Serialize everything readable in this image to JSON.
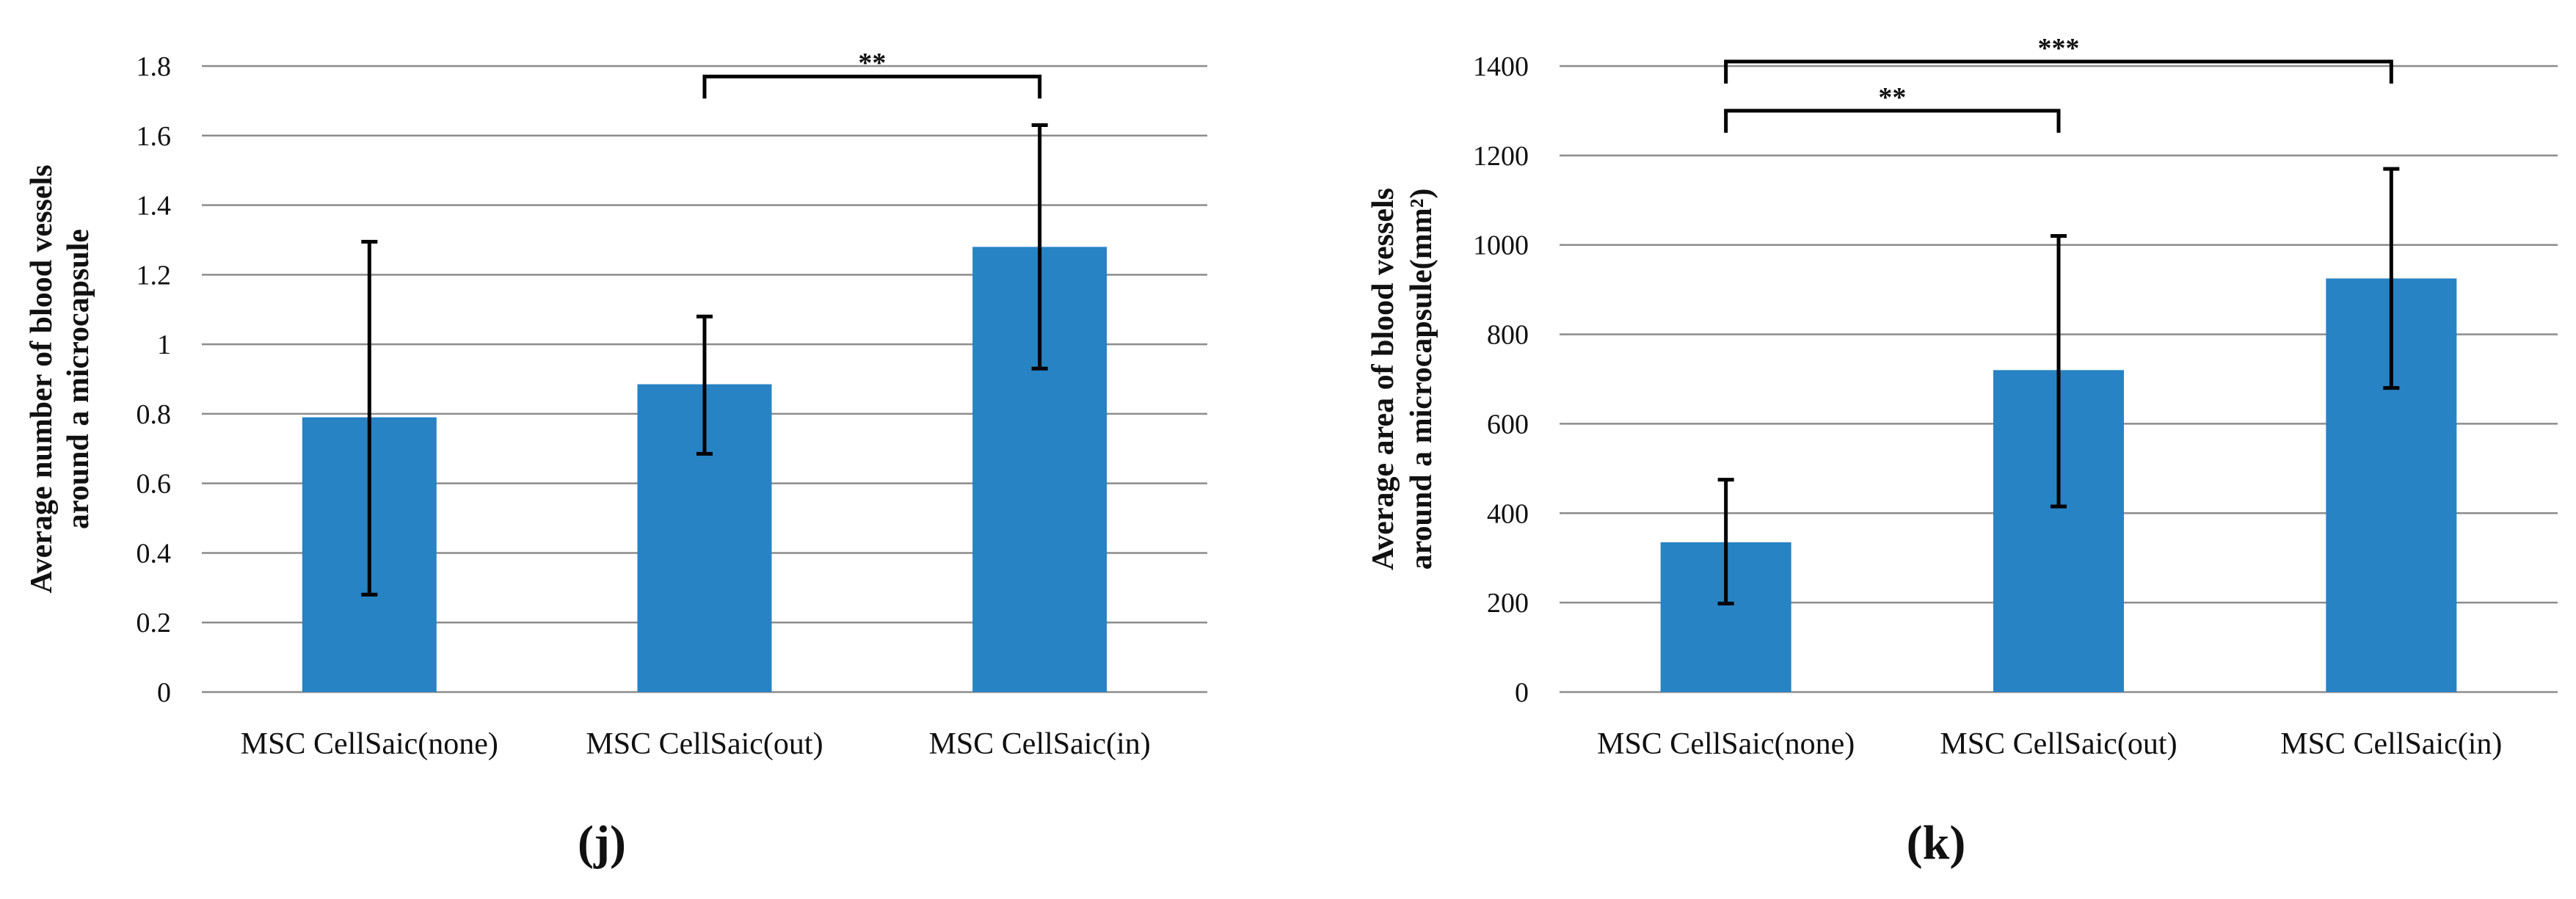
{
  "colors": {
    "bar": "#2783c4",
    "grid": "#8c8c8c",
    "error": "#000000",
    "text": "#111111"
  },
  "chart_data": [
    {
      "type": "bar",
      "panel_label": "(j)",
      "categories": [
        "MSC CellSaic(none)",
        "MSC CellSaic(out)",
        "MSC CellSaic(in)"
      ],
      "values": [
        0.79,
        0.885,
        1.28
      ],
      "error_bars": [
        [
          0.28,
          1.295
        ],
        [
          0.685,
          1.08
        ],
        [
          0.93,
          1.63
        ]
      ],
      "ylabel_lines": [
        "Average number of blood vessels",
        "around a microcapsule"
      ],
      "ylim": [
        0,
        1.8
      ],
      "yticks": [
        0,
        0.2,
        0.4,
        0.6,
        0.8,
        1,
        1.2,
        1.4,
        1.6,
        1.8
      ],
      "ytick_labels": [
        "0",
        "0.2",
        "0.4",
        "0.6",
        "0.8",
        "1",
        "1.2",
        "1.4",
        "1.6",
        "1.8"
      ],
      "grid": true,
      "significance": [
        {
          "from": 1,
          "to": 2,
          "label": "**",
          "y": 1.77
        }
      ]
    },
    {
      "type": "bar",
      "panel_label": "(k)",
      "categories": [
        "MSC CellSaic(none)",
        "MSC CellSaic(out)",
        "MSC CellSaic(in)"
      ],
      "values": [
        335,
        720,
        925
      ],
      "error_bars": [
        [
          198,
          475
        ],
        [
          415,
          1020
        ],
        [
          680,
          1170
        ]
      ],
      "ylabel_lines": [
        "Average area of blood vessels",
        "around a microcapsule(mm²)"
      ],
      "ylim": [
        0,
        1400
      ],
      "yticks": [
        0,
        200,
        400,
        600,
        800,
        1000,
        1200,
        1400
      ],
      "ytick_labels": [
        "0",
        "200",
        "400",
        "600",
        "800",
        "1000",
        "1200",
        "1400"
      ],
      "grid": true,
      "significance": [
        {
          "from": 0,
          "to": 1,
          "label": "**",
          "y": 1300
        },
        {
          "from": 0,
          "to": 2,
          "label": "***",
          "y": 1410
        }
      ]
    }
  ]
}
